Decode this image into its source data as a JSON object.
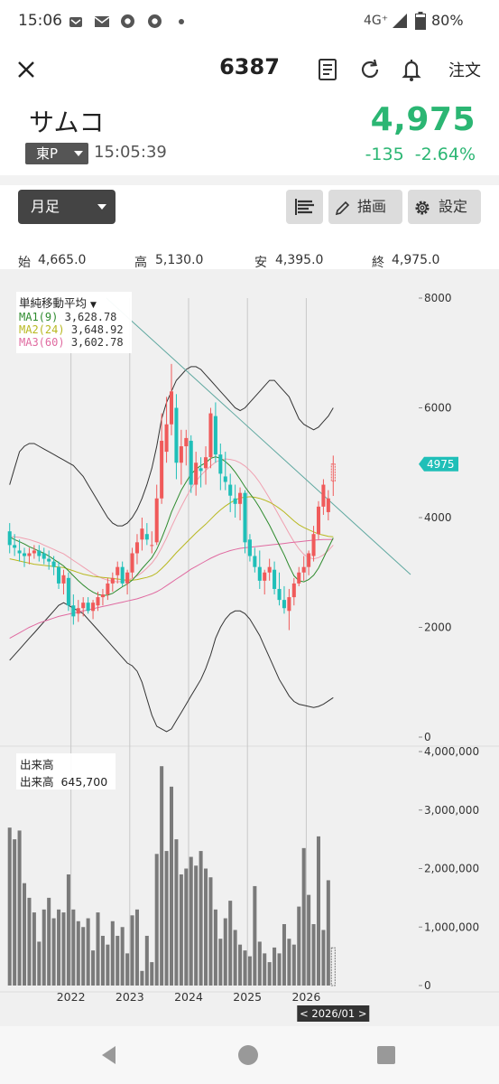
{
  "status_bar": {
    "time": "15:06",
    "network": "4G⁺",
    "battery": "80%",
    "icons": [
      "notification-icon",
      "mail-icon",
      "chrome-icon",
      "chrome-icon",
      "dot-icon",
      "signal-icon",
      "battery-icon"
    ]
  },
  "header": {
    "title": "6387",
    "order_label": "注文",
    "icons": [
      "close-icon",
      "document-icon",
      "refresh-icon",
      "bell-icon"
    ]
  },
  "quote": {
    "name": "サムコ",
    "market": "東P",
    "time": "15:05:39",
    "price": "4,975",
    "change": "-135",
    "change_pct": "-2.64%",
    "price_color": "#2bb673"
  },
  "toolbar": {
    "period": "月足",
    "draw_label": "描画",
    "settings_label": "設定"
  },
  "ohlc": {
    "open_label": "始",
    "open": "4,665.0",
    "high_label": "高",
    "high": "5,130.0",
    "low_label": "安",
    "low": "4,395.0",
    "close_label": "終",
    "close": "4,975.0"
  },
  "ma_legend": {
    "title": "単純移動平均",
    "ma1_label": "MA1(9)",
    "ma1_value": "3,628.78",
    "ma1_color": "#2e8b2e",
    "ma2_label": "MA2(24)",
    "ma2_value": "3,648.92",
    "ma2_color": "#b8b820",
    "ma3_label": "MA3(60)",
    "ma3_value": "3,602.78",
    "ma3_color": "#e06aa0"
  },
  "volume_legend": {
    "title": "出来高",
    "label": "出来高",
    "value": "645,700"
  },
  "price_axis": [
    "8000",
    "6000",
    "4000",
    "2000",
    "0"
  ],
  "volume_axis": [
    "4,000,000",
    "3,000,000",
    "2,000,000",
    "1,000,000",
    "0"
  ],
  "x_axis": [
    "2022",
    "2023",
    "2024",
    "2025",
    "2026"
  ],
  "current_price_tag": "4975",
  "cursor_label": "< 2026/01 >",
  "chart_data": {
    "type": "candlestick",
    "timeframe": "月足",
    "ylim": [
      0,
      8000
    ],
    "volume_ylim": [
      0,
      4000000
    ],
    "up_color": "#f05a5a",
    "down_color": "#1fbfb8",
    "x_ticks": [
      "2022",
      "2023",
      "2024",
      "2025",
      "2026"
    ],
    "candles": [
      [
        3750,
        3900,
        3350,
        3500,
        2700000
      ],
      [
        3500,
        3700,
        3300,
        3450,
        2500000
      ],
      [
        3400,
        3600,
        3200,
        3350,
        2650000
      ],
      [
        3350,
        3450,
        3100,
        3300,
        1750000
      ],
      [
        3300,
        3450,
        3150,
        3350,
        1500000
      ],
      [
        3350,
        3500,
        3250,
        3400,
        1250000
      ],
      [
        3400,
        3500,
        3200,
        3300,
        750000
      ],
      [
        3350,
        3450,
        3150,
        3250,
        1300000
      ],
      [
        3250,
        3400,
        3050,
        3200,
        1500000
      ],
      [
        3200,
        3300,
        2950,
        3100,
        1150000
      ],
      [
        3100,
        3200,
        2700,
        2800,
        1300000
      ],
      [
        2800,
        3050,
        2600,
        2950,
        1250000
      ],
      [
        2900,
        3000,
        2300,
        2400,
        1900000
      ],
      [
        2400,
        2600,
        2050,
        2200,
        1300000
      ],
      [
        2250,
        2500,
        2100,
        2350,
        1100000
      ],
      [
        2350,
        2550,
        2200,
        2450,
        1000000
      ],
      [
        2450,
        2550,
        2250,
        2300,
        1150000
      ],
      [
        2300,
        2500,
        2150,
        2450,
        600000
      ],
      [
        2400,
        2650,
        2300,
        2550,
        1250000
      ],
      [
        2550,
        2700,
        2400,
        2600,
        850000
      ],
      [
        2600,
        2900,
        2500,
        2800,
        700000
      ],
      [
        2800,
        3000,
        2650,
        2900,
        1100000
      ],
      [
        2950,
        3200,
        2800,
        3100,
        850000
      ],
      [
        3100,
        3200,
        2750,
        2800,
        1000000
      ],
      [
        2800,
        3050,
        2600,
        3000,
        550000
      ],
      [
        3000,
        3450,
        2900,
        3350,
        1200000
      ],
      [
        3350,
        3700,
        3150,
        3550,
        1300000
      ],
      [
        3600,
        4000,
        3400,
        3800,
        250000
      ],
      [
        3700,
        3900,
        3500,
        3600,
        850000
      ],
      [
        3500,
        3750,
        3350,
        3500,
        400000
      ],
      [
        3550,
        4600,
        3500,
        4350,
        2250000
      ],
      [
        4350,
        5900,
        4250,
        5400,
        3750000
      ],
      [
        5200,
        6200,
        5000,
        5700,
        2300000
      ],
      [
        5700,
        6800,
        5500,
        6300,
        3400000
      ],
      [
        6000,
        6250,
        4700,
        5000,
        2500000
      ],
      [
        5000,
        5600,
        4600,
        5300,
        1900000
      ],
      [
        5300,
        5600,
        4950,
        5450,
        2000000
      ],
      [
        5400,
        5500,
        4450,
        4600,
        2200000
      ],
      [
        4600,
        5200,
        4400,
        5000,
        2050000
      ],
      [
        4900,
        5100,
        4550,
        4850,
        2300000
      ],
      [
        4900,
        5300,
        4600,
        5100,
        2000000
      ],
      [
        5100,
        6000,
        4900,
        5900,
        1850000
      ],
      [
        5850,
        6100,
        5000,
        5150,
        1300000
      ],
      [
        5150,
        5350,
        4500,
        4800,
        800000
      ],
      [
        4750,
        5200,
        4500,
        4650,
        1150000
      ],
      [
        4600,
        4800,
        4100,
        4400,
        1450000
      ],
      [
        4350,
        4600,
        4000,
        4250,
        950000
      ],
      [
        4250,
        4550,
        3950,
        4450,
        700000
      ],
      [
        4450,
        4500,
        3350,
        3550,
        600000
      ],
      [
        3600,
        3700,
        3200,
        3300,
        500000
      ],
      [
        3300,
        3450,
        3000,
        3100,
        1700000
      ],
      [
        3100,
        3400,
        2700,
        2850,
        750000
      ],
      [
        2850,
        3050,
        2600,
        3000,
        550000
      ],
      [
        3000,
        3250,
        2850,
        3100,
        400000
      ],
      [
        3050,
        3200,
        2600,
        2700,
        650000
      ],
      [
        2700,
        3000,
        2400,
        2500,
        550000
      ],
      [
        2500,
        2750,
        2250,
        2350,
        1050000
      ],
      [
        2300,
        2700,
        1950,
        2550,
        800000
      ],
      [
        2550,
        2900,
        2400,
        2800,
        700000
      ],
      [
        2800,
        3100,
        2750,
        3000,
        1350000
      ],
      [
        3000,
        3300,
        2850,
        3100,
        2350000
      ],
      [
        3100,
        3400,
        2950,
        3350,
        1550000
      ],
      [
        3300,
        3850,
        3200,
        3700,
        1050000
      ],
      [
        3700,
        4300,
        3600,
        4200,
        2550000
      ],
      [
        4200,
        4700,
        4050,
        4600,
        950000
      ],
      [
        4100,
        4500,
        3950,
        4350,
        1800000
      ],
      [
        4665,
        5130,
        4395,
        4975,
        645700
      ]
    ],
    "ma1": [
      3650,
      3600,
      3560,
      3520,
      3470,
      3430,
      3390,
      3350,
      3300,
      3240,
      3180,
      3120,
      3030,
      2940,
      2850,
      2770,
      2700,
      2640,
      2600,
      2580,
      2590,
      2620,
      2680,
      2740,
      2790,
      2860,
      2960,
      3070,
      3170,
      3270,
      3420,
      3620,
      3850,
      4100,
      4300,
      4500,
      4650,
      4790,
      4880,
      4950,
      5000,
      5080,
      5110,
      5080,
      5020,
      4940,
      4830,
      4700,
      4560,
      4440,
      4320,
      4180,
      4020,
      3860,
      3680,
      3500,
      3320,
      3120,
      2940,
      2850,
      2830,
      2870,
      2950,
      3080,
      3260,
      3450,
      3629
    ],
    "ma2": [
      3250,
      3230,
      3210,
      3190,
      3170,
      3150,
      3140,
      3130,
      3120,
      3110,
      3100,
      3090,
      3060,
      3030,
      3000,
      2970,
      2950,
      2930,
      2920,
      2910,
      2900,
      2890,
      2880,
      2870,
      2860,
      2860,
      2870,
      2890,
      2910,
      2940,
      2990,
      3070,
      3160,
      3260,
      3360,
      3450,
      3540,
      3630,
      3720,
      3800,
      3880,
      3970,
      4060,
      4140,
      4210,
      4270,
      4320,
      4360,
      4370,
      4380,
      4370,
      4350,
      4320,
      4280,
      4230,
      4170,
      4100,
      4020,
      3940,
      3870,
      3820,
      3780,
      3740,
      3700,
      3680,
      3660,
      3649
    ],
    "ma3": [
      1800,
      1850,
      1900,
      1950,
      2000,
      2040,
      2080,
      2110,
      2140,
      2170,
      2200,
      2220,
      2240,
      2260,
      2280,
      2300,
      2320,
      2340,
      2360,
      2380,
      2400,
      2420,
      2440,
      2460,
      2480,
      2500,
      2520,
      2550,
      2580,
      2610,
      2650,
      2700,
      2760,
      2820,
      2880,
      2940,
      3000,
      3060,
      3110,
      3160,
      3210,
      3260,
      3300,
      3340,
      3370,
      3400,
      3420,
      3440,
      3450,
      3460,
      3470,
      3480,
      3490,
      3500,
      3510,
      3520,
      3530,
      3540,
      3550,
      3560,
      3570,
      3580,
      3590,
      3595,
      3600,
      3602,
      3603
    ],
    "bb_upper": [
      4600,
      4900,
      5200,
      5300,
      5350,
      5350,
      5300,
      5250,
      5200,
      5150,
      5100,
      5050,
      5000,
      4950,
      4850,
      4750,
      4600,
      4450,
      4300,
      4150,
      4000,
      3900,
      3850,
      3850,
      3900,
      4000,
      4150,
      4350,
      4600,
      4900,
      5300,
      5800,
      6100,
      6300,
      6500,
      6600,
      6700,
      6750,
      6750,
      6700,
      6600,
      6500,
      6400,
      6300,
      6200,
      6100,
      6000,
      5950,
      6000,
      6100,
      6200,
      6300,
      6400,
      6500,
      6500,
      6400,
      6300,
      6200,
      6000,
      5800,
      5700,
      5650,
      5600,
      5650,
      5750,
      5850,
      6000
    ],
    "bb_mid": [
      3650,
      3650,
      3640,
      3620,
      3600,
      3570,
      3540,
      3500,
      3460,
      3420,
      3380,
      3340,
      3280,
      3220,
      3160,
      3100,
      3040,
      2980,
      2930,
      2890,
      2860,
      2840,
      2830,
      2840,
      2860,
      2890,
      2940,
      3000,
      3080,
      3170,
      3290,
      3450,
      3630,
      3830,
      4020,
      4200,
      4370,
      4530,
      4660,
      4770,
      4860,
      4940,
      5010,
      5050,
      5070,
      5060,
      5040,
      5000,
      4940,
      4860,
      4760,
      4640,
      4500,
      4350,
      4190,
      4030,
      3870,
      3710,
      3560,
      3430,
      3330,
      3270,
      3250,
      3270,
      3320,
      3400,
      3500
    ],
    "bb_lower": [
      1400,
      1500,
      1600,
      1700,
      1800,
      1900,
      2000,
      2100,
      2200,
      2300,
      2400,
      2450,
      2400,
      2350,
      2300,
      2250,
      2150,
      2050,
      1950,
      1850,
      1750,
      1650,
      1550,
      1450,
      1350,
      1300,
      1200,
      1000,
      700,
      400,
      200,
      150,
      100,
      150,
      300,
      450,
      600,
      750,
      900,
      1050,
      1250,
      1500,
      1800,
      2000,
      2150,
      2250,
      2300,
      2300,
      2250,
      2150,
      2000,
      1850,
      1650,
      1450,
      1250,
      1050,
      900,
      750,
      650,
      600,
      580,
      560,
      540,
      560,
      600,
      660,
      720
    ],
    "trendline": [
      [
        8000,
        8000
      ],
      [
        6300,
        8000
      ]
    ]
  }
}
